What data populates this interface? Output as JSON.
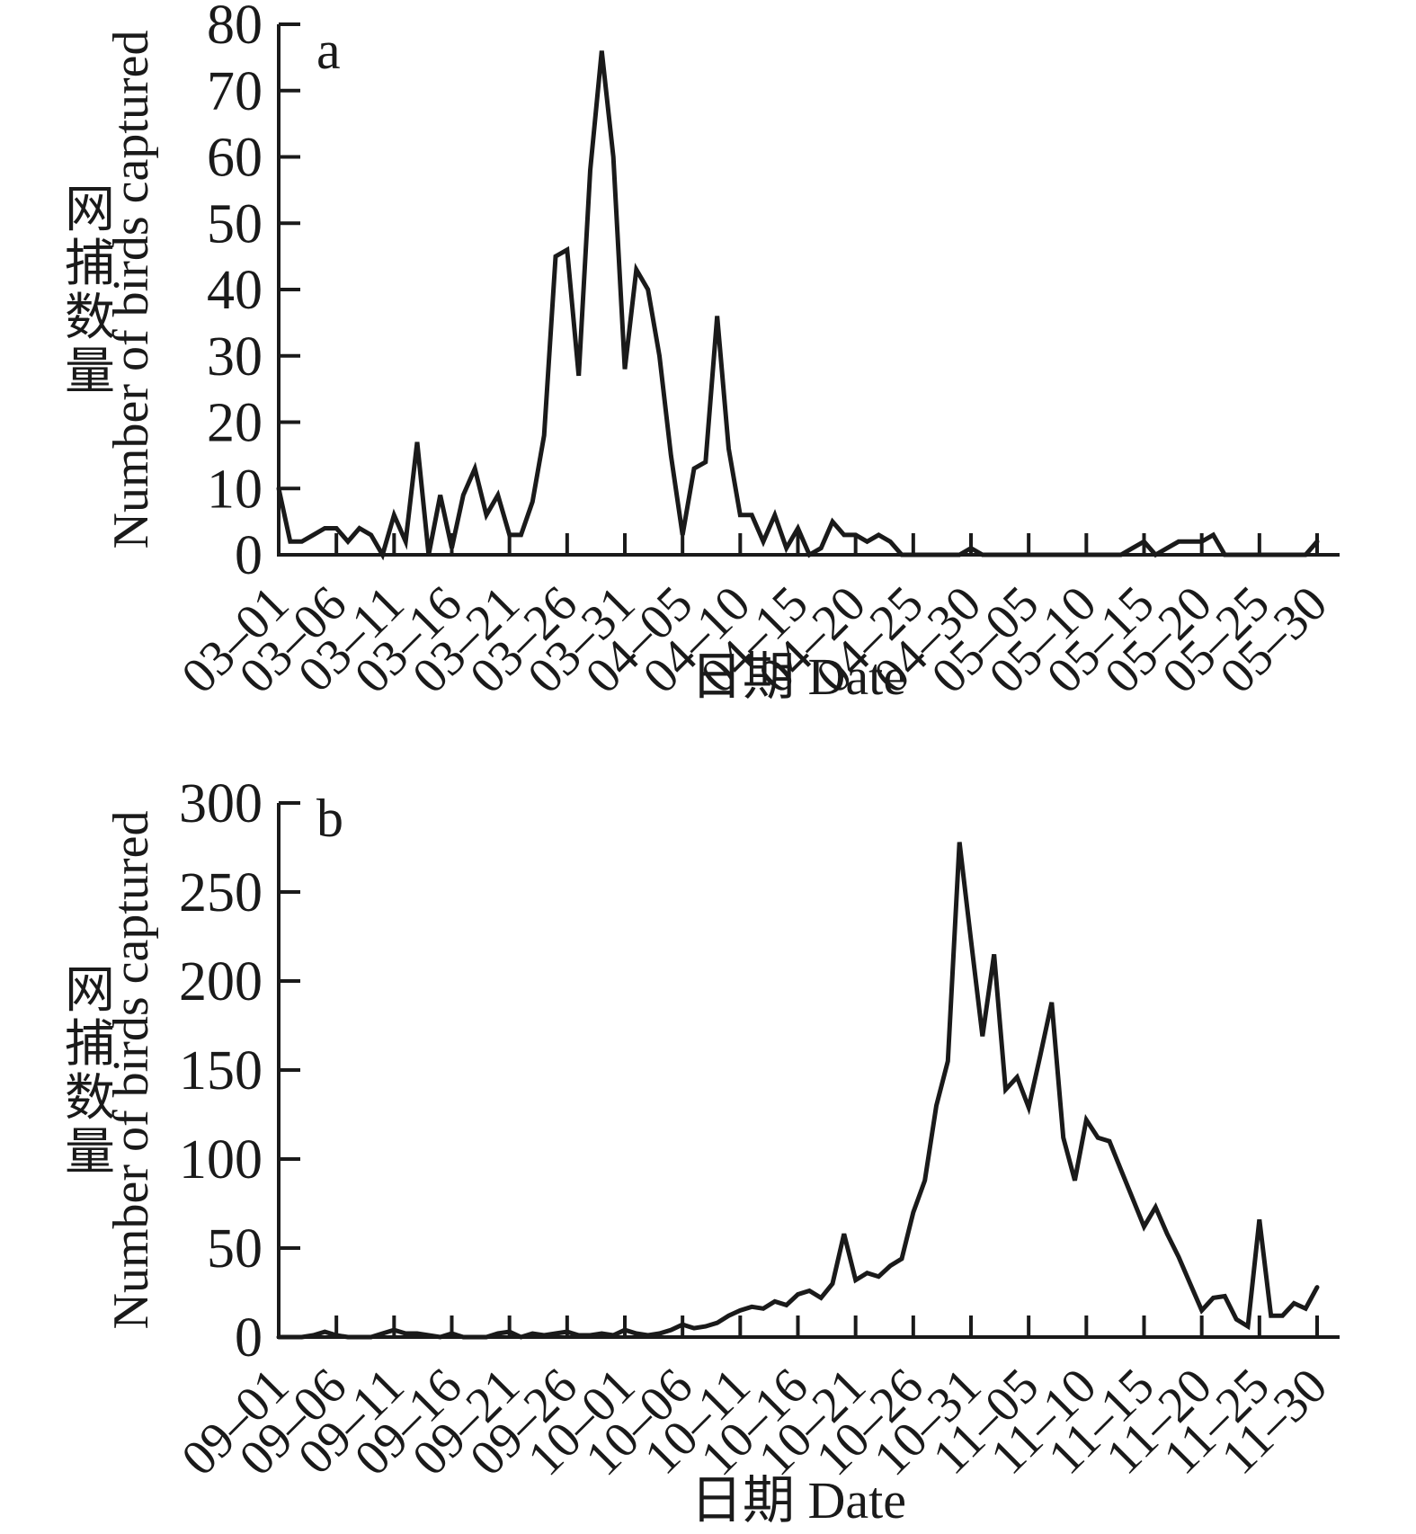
{
  "page": {
    "background": "#ffffff",
    "ink_color": "#1a1a1a"
  },
  "chart_data": [
    {
      "panel": "a",
      "type": "line",
      "ylabel_cn": "网捕数量",
      "ylabel_en": "Number of birds captured",
      "xlabel": "日期 Date",
      "ylim": [
        0,
        80
      ],
      "yticks": [
        0,
        10,
        20,
        30,
        40,
        50,
        60,
        70,
        80
      ],
      "grid": false,
      "legend": "none",
      "line_color": "#1a1a1a",
      "x_tick_every": 5,
      "x_tick_labels": [
        "03–01",
        "03–06",
        "03–11",
        "03–16",
        "03–21",
        "03–26",
        "03–31",
        "04–05",
        "04–10",
        "04–15",
        "04–20",
        "04–25",
        "04–30",
        "05–05",
        "05–10",
        "05–15",
        "05–20",
        "05–25",
        "05–30"
      ],
      "x_range_note": "daily values from 03-01 to 05-30",
      "values": [
        10,
        2,
        2,
        3,
        4,
        4,
        2,
        4,
        3,
        0,
        6,
        2,
        17,
        0,
        9,
        1,
        9,
        13,
        6,
        9,
        3,
        3,
        8,
        18,
        45,
        46,
        27,
        58,
        76,
        60,
        28,
        43,
        40,
        30,
        15,
        3,
        13,
        14,
        36,
        16,
        6,
        6,
        2,
        6,
        1,
        4,
        0,
        1,
        5,
        3,
        3,
        2,
        3,
        2,
        0,
        0,
        0,
        0,
        0,
        0,
        1,
        0,
        0,
        0,
        0,
        0,
        0,
        0,
        0,
        0,
        0,
        0,
        0,
        0,
        1,
        2,
        0,
        1,
        2,
        2,
        2,
        3,
        0,
        0,
        0,
        0,
        0,
        0,
        0,
        0,
        2
      ]
    },
    {
      "panel": "b",
      "type": "line",
      "ylabel_cn": "网捕数量",
      "ylabel_en": "Number of birds captured",
      "xlabel": "日期 Date",
      "ylim": [
        0,
        300
      ],
      "yticks": [
        0,
        50,
        100,
        150,
        200,
        250,
        300
      ],
      "grid": false,
      "legend": "none",
      "line_color": "#1a1a1a",
      "x_tick_every": 5,
      "x_tick_labels": [
        "09–01",
        "09–06",
        "09–11",
        "09–16",
        "09–21",
        "09–26",
        "10–01",
        "10–06",
        "10–11",
        "10–16",
        "10–21",
        "10–26",
        "10–31",
        "11–05",
        "11–10",
        "11–15",
        "11–20",
        "11–25",
        "11–30"
      ],
      "x_range_note": "daily values from 09-01 to 11-30",
      "values": [
        0,
        0,
        0,
        1,
        3,
        1,
        0,
        0,
        0,
        2,
        4,
        2,
        2,
        1,
        0,
        2,
        0,
        0,
        0,
        2,
        3,
        0,
        2,
        1,
        2,
        3,
        1,
        1,
        2,
        1,
        4,
        2,
        1,
        2,
        4,
        7,
        5,
        6,
        8,
        12,
        15,
        17,
        16,
        20,
        18,
        24,
        26,
        22,
        30,
        58,
        32,
        36,
        34,
        40,
        44,
        70,
        88,
        130,
        155,
        278,
        223,
        169,
        215,
        139,
        146,
        129,
        158,
        188,
        112,
        88,
        122,
        112,
        110,
        94,
        78,
        62,
        73,
        58,
        45,
        30,
        15,
        22,
        23,
        10,
        6,
        66,
        12,
        12,
        19,
        16,
        28
      ]
    }
  ]
}
